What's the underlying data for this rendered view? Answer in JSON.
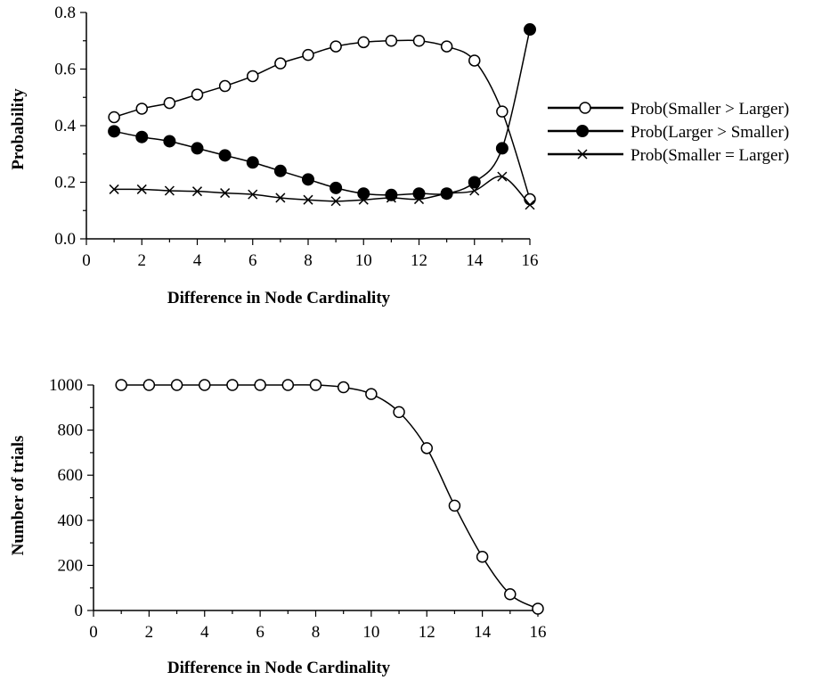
{
  "chart_data": [
    {
      "type": "line",
      "title": "",
      "xlabel": "Difference in Node Cardinality",
      "ylabel": "Probability",
      "xlim": [
        0,
        16
      ],
      "ylim": [
        0,
        0.8
      ],
      "xticks": [
        0,
        2,
        4,
        6,
        8,
        10,
        12,
        14,
        16
      ],
      "yticks": [
        0.0,
        0.2,
        0.4,
        0.6,
        0.8
      ],
      "ytick_labels": [
        "0.0",
        "0.2",
        "0.4",
        "0.6",
        "0.8"
      ],
      "grid": false,
      "legend_position": "right",
      "x": [
        1,
        2,
        3,
        4,
        5,
        6,
        7,
        8,
        9,
        10,
        11,
        12,
        13,
        14,
        15,
        16
      ],
      "series": [
        {
          "name": "Prob(Smaller > Larger)",
          "marker": "open-circle",
          "values": [
            0.43,
            0.46,
            0.48,
            0.51,
            0.54,
            0.575,
            0.62,
            0.65,
            0.68,
            0.695,
            0.7,
            0.7,
            0.68,
            0.63,
            0.45,
            0.14
          ]
        },
        {
          "name": "Prob(Larger > Smaller)",
          "marker": "filled-circle",
          "values": [
            0.38,
            0.36,
            0.345,
            0.32,
            0.295,
            0.27,
            0.24,
            0.21,
            0.18,
            0.16,
            0.155,
            0.16,
            0.16,
            0.2,
            0.32,
            0.74
          ]
        },
        {
          "name": "Prob(Smaller = Larger)",
          "marker": "cross",
          "values": [
            0.175,
            0.175,
            0.17,
            0.168,
            0.162,
            0.157,
            0.145,
            0.138,
            0.133,
            0.138,
            0.145,
            0.14,
            0.16,
            0.17,
            0.22,
            0.12
          ]
        }
      ]
    },
    {
      "type": "line",
      "title": "",
      "xlabel": "Difference in Node Cardinality",
      "ylabel": "Number of trials",
      "xlim": [
        0,
        16
      ],
      "ylim": [
        0,
        1000
      ],
      "xticks": [
        0,
        2,
        4,
        6,
        8,
        10,
        12,
        14,
        16
      ],
      "yticks": [
        0,
        200,
        400,
        600,
        800,
        1000
      ],
      "ytick_labels": [
        "0",
        "200",
        "400",
        "600",
        "800",
        "1000"
      ],
      "grid": false,
      "x": [
        1,
        2,
        3,
        4,
        5,
        6,
        7,
        8,
        9,
        10,
        11,
        12,
        13,
        14,
        15,
        16
      ],
      "series": [
        {
          "marker": "open-circle",
          "values": [
            1000,
            1000,
            1000,
            1000,
            1000,
            1000,
            1000,
            1000,
            990,
            960,
            880,
            720,
            465,
            238,
            72,
            8
          ]
        }
      ]
    }
  ]
}
